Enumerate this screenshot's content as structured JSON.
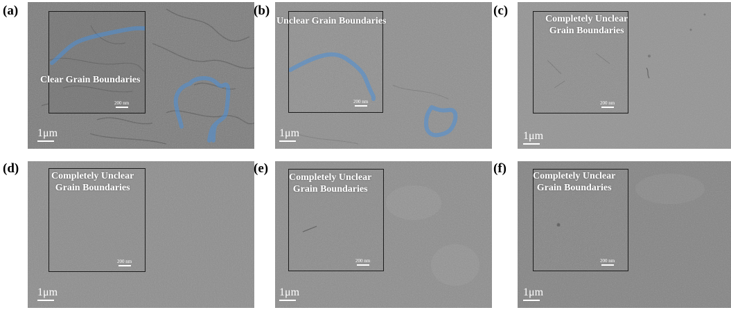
{
  "figure": {
    "panels": [
      {
        "id": "a",
        "letter": "(a)",
        "annotation": [
          "Clear Grain Boundaries"
        ],
        "inset_scale": "200 nm",
        "main_scale": "1μm",
        "tone": "#7c7c7c"
      },
      {
        "id": "b",
        "letter": "(b)",
        "annotation": [
          "Unclear Grain Boundaries"
        ],
        "inset_scale": "200 nm",
        "main_scale": "1μm",
        "tone": "#8f8f8f"
      },
      {
        "id": "c",
        "letter": "(c)",
        "annotation": [
          "Completely Unclear",
          "Grain Boundaries"
        ],
        "inset_scale": "200 nm",
        "main_scale": "1μm",
        "tone": "#939393"
      },
      {
        "id": "d",
        "letter": "(d)",
        "annotation": [
          "Completely Unclear",
          "Grain Boundaries"
        ],
        "inset_scale": "200 nm",
        "main_scale": "1μm",
        "tone": "#8e8e8e"
      },
      {
        "id": "e",
        "letter": "(e)",
        "annotation": [
          "Completely Unclear",
          "Grain Boundaries"
        ],
        "inset_scale": "200 nm",
        "main_scale": "1μm",
        "tone": "#8c8c8c"
      },
      {
        "id": "f",
        "letter": "(f)",
        "annotation": [
          "Completely Unclear",
          "Grain Boundaries"
        ],
        "inset_scale": "200 nm",
        "main_scale": "1μm",
        "tone": "#838383"
      }
    ],
    "colors": {
      "grain_boundary_highlight": "#4a90d9",
      "inset_border": "#1a1a1a",
      "label_text": "#ffffff"
    }
  }
}
